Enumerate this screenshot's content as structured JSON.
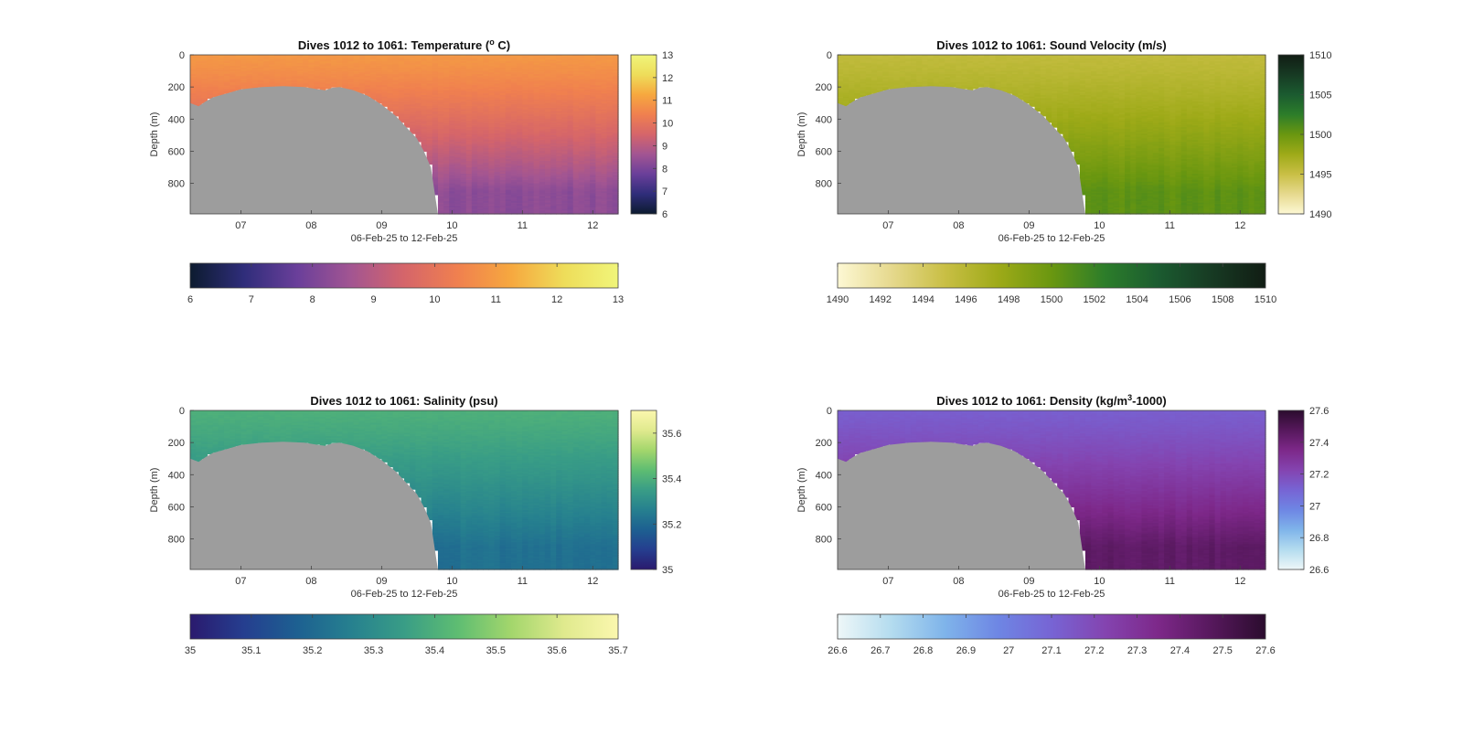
{
  "figure": {
    "background": "#ffffff",
    "mask_color": "#9d9d9d"
  },
  "chart_data": [
    {
      "type": "heatmap",
      "title": "Dives 1012 to 1061: Temperature (",
      "title_sup": "o",
      "title_end": " C)",
      "xlabel": "06-Feb-25 to 12-Feb-25",
      "ylabel": "Depth (m)",
      "x_ticks": [
        "07",
        "08",
        "09",
        "10",
        "11",
        "12"
      ],
      "x_tick_values": [
        7,
        8,
        9,
        10,
        11,
        12
      ],
      "xlim": [
        6.28,
        12.36
      ],
      "y_ticks": [
        "0",
        "200",
        "400",
        "600",
        "800"
      ],
      "y_tick_values": [
        0,
        200,
        400,
        600,
        800
      ],
      "ylim": [
        0,
        990
      ],
      "y_reversed": true,
      "surface_value": 10.9,
      "deep_value": 8.3,
      "clim": [
        6,
        13
      ],
      "colormap": [
        "#0c1b2f",
        "#2f2d7a",
        "#6a3f9a",
        "#a25592",
        "#d5656a",
        "#f0804f",
        "#f6a83f",
        "#eedd5a",
        "#f0f57a"
      ],
      "colorbar_right": {
        "ticks": [
          "6",
          "7",
          "8",
          "9",
          "10",
          "11",
          "12",
          "13"
        ],
        "values": [
          6,
          7,
          8,
          9,
          10,
          11,
          12,
          13
        ]
      },
      "colorbar_bottom": {
        "ticks": [
          "6",
          "7",
          "8",
          "9",
          "10",
          "11",
          "12",
          "13"
        ],
        "values": [
          6,
          7,
          8,
          9,
          10,
          11,
          12,
          13
        ]
      }
    },
    {
      "type": "heatmap",
      "title": "Dives 1012 to 1061: Sound Velocity (m/s)",
      "title_sup": "",
      "title_end": "",
      "xlabel": "06-Feb-25 to 12-Feb-25",
      "ylabel": "Depth (m)",
      "x_ticks": [
        "07",
        "08",
        "09",
        "10",
        "11",
        "12"
      ],
      "x_tick_values": [
        7,
        8,
        9,
        10,
        11,
        12
      ],
      "xlim": [
        6.28,
        12.36
      ],
      "y_ticks": [
        "0",
        "200",
        "400",
        "600",
        "800"
      ],
      "y_tick_values": [
        0,
        200,
        400,
        600,
        800
      ],
      "ylim": [
        0,
        990
      ],
      "y_reversed": true,
      "surface_value": 1495.5,
      "deep_value": 1500.5,
      "clim": [
        1490,
        1510
      ],
      "colormap": [
        "#fdf8d4",
        "#e6d98e",
        "#c9bf45",
        "#9eaa18",
        "#6a9710",
        "#2c7d2a",
        "#1b5b30",
        "#173a23",
        "#111d14"
      ],
      "colorbar_right": {
        "ticks": [
          "1490",
          "1495",
          "1500",
          "1505",
          "1510"
        ],
        "values": [
          1490,
          1495,
          1500,
          1505,
          1510
        ]
      },
      "colorbar_bottom": {
        "ticks": [
          "1490",
          "1492",
          "1494",
          "1496",
          "1498",
          "1500",
          "1502",
          "1504",
          "1506",
          "1508",
          "1510"
        ],
        "values": [
          1490,
          1492,
          1494,
          1496,
          1498,
          1500,
          1502,
          1504,
          1506,
          1508,
          1510
        ]
      }
    },
    {
      "type": "heatmap",
      "title": "Dives 1012 to 1061: Salinity (psu)",
      "title_sup": "",
      "title_end": "",
      "xlabel": "06-Feb-25 to 12-Feb-25",
      "ylabel": "Depth (m)",
      "x_ticks": [
        "07",
        "08",
        "09",
        "10",
        "11",
        "12"
      ],
      "x_tick_values": [
        7,
        8,
        9,
        10,
        11,
        12
      ],
      "xlim": [
        6.28,
        12.36
      ],
      "y_ticks": [
        "0",
        "200",
        "400",
        "600",
        "800"
      ],
      "y_tick_values": [
        0,
        200,
        400,
        600,
        800
      ],
      "ylim": [
        0,
        990
      ],
      "y_reversed": true,
      "surface_value": 35.4,
      "deep_value": 35.22,
      "clim": [
        35,
        35.7
      ],
      "colormap": [
        "#2a1a6e",
        "#253e8f",
        "#1d6091",
        "#26808f",
        "#399d86",
        "#5ebd72",
        "#a3d66c",
        "#e0ea8e",
        "#fbf7ae"
      ],
      "colorbar_right": {
        "ticks": [
          "35",
          "35.2",
          "35.4",
          "35.6"
        ],
        "values": [
          35,
          35.2,
          35.4,
          35.6
        ]
      },
      "colorbar_bottom": {
        "ticks": [
          "35",
          "35.1",
          "35.2",
          "35.3",
          "35.4",
          "35.5",
          "35.6",
          "35.7"
        ],
        "values": [
          35,
          35.1,
          35.2,
          35.3,
          35.4,
          35.5,
          35.6,
          35.7
        ]
      }
    },
    {
      "type": "heatmap",
      "title": "Dives 1012 to 1061: Density (kg/m",
      "title_sup": "3",
      "title_end": "-1000)",
      "xlabel": "06-Feb-25 to 12-Feb-25",
      "ylabel": "Depth (m)",
      "x_ticks": [
        "07",
        "08",
        "09",
        "10",
        "11",
        "12"
      ],
      "x_tick_values": [
        7,
        8,
        9,
        10,
        11,
        12
      ],
      "xlim": [
        6.28,
        12.36
      ],
      "y_ticks": [
        "0",
        "200",
        "400",
        "600",
        "800"
      ],
      "y_tick_values": [
        0,
        200,
        400,
        600,
        800
      ],
      "ylim": [
        0,
        990
      ],
      "y_reversed": true,
      "surface_value": 27.12,
      "deep_value": 27.45,
      "clim": [
        26.6,
        27.6
      ],
      "colormap": [
        "#eef7f8",
        "#b4dcef",
        "#7fb4ea",
        "#6e86e4",
        "#7764d4",
        "#8444b0",
        "#7d2889",
        "#56185c",
        "#2b0c2e"
      ],
      "colorbar_right": {
        "ticks": [
          "26.6",
          "26.8",
          "27",
          "27.2",
          "27.4",
          "27.6"
        ],
        "values": [
          26.6,
          26.8,
          27,
          27.2,
          27.4,
          27.6
        ]
      },
      "colorbar_bottom": {
        "ticks": [
          "26.6",
          "26.7",
          "26.8",
          "26.9",
          "27",
          "27.1",
          "27.2",
          "27.3",
          "27.4",
          "27.5",
          "27.6"
        ],
        "values": [
          26.6,
          26.7,
          26.8,
          26.9,
          27,
          27.1,
          27.2,
          27.3,
          27.4,
          27.5,
          27.6
        ]
      }
    }
  ],
  "bottom_profile": {
    "x": [
      6.28,
      6.4,
      6.5,
      6.6,
      6.8,
      7.0,
      7.3,
      7.6,
      7.9,
      8.1,
      8.2,
      8.3,
      8.4,
      8.6,
      8.8,
      9.0,
      9.2,
      9.35,
      9.5,
      9.6,
      9.7,
      9.8
    ],
    "depth": [
      300,
      320,
      290,
      265,
      240,
      215,
      200,
      195,
      200,
      215,
      220,
      205,
      200,
      220,
      255,
      310,
      380,
      450,
      520,
      600,
      700,
      990
    ]
  }
}
